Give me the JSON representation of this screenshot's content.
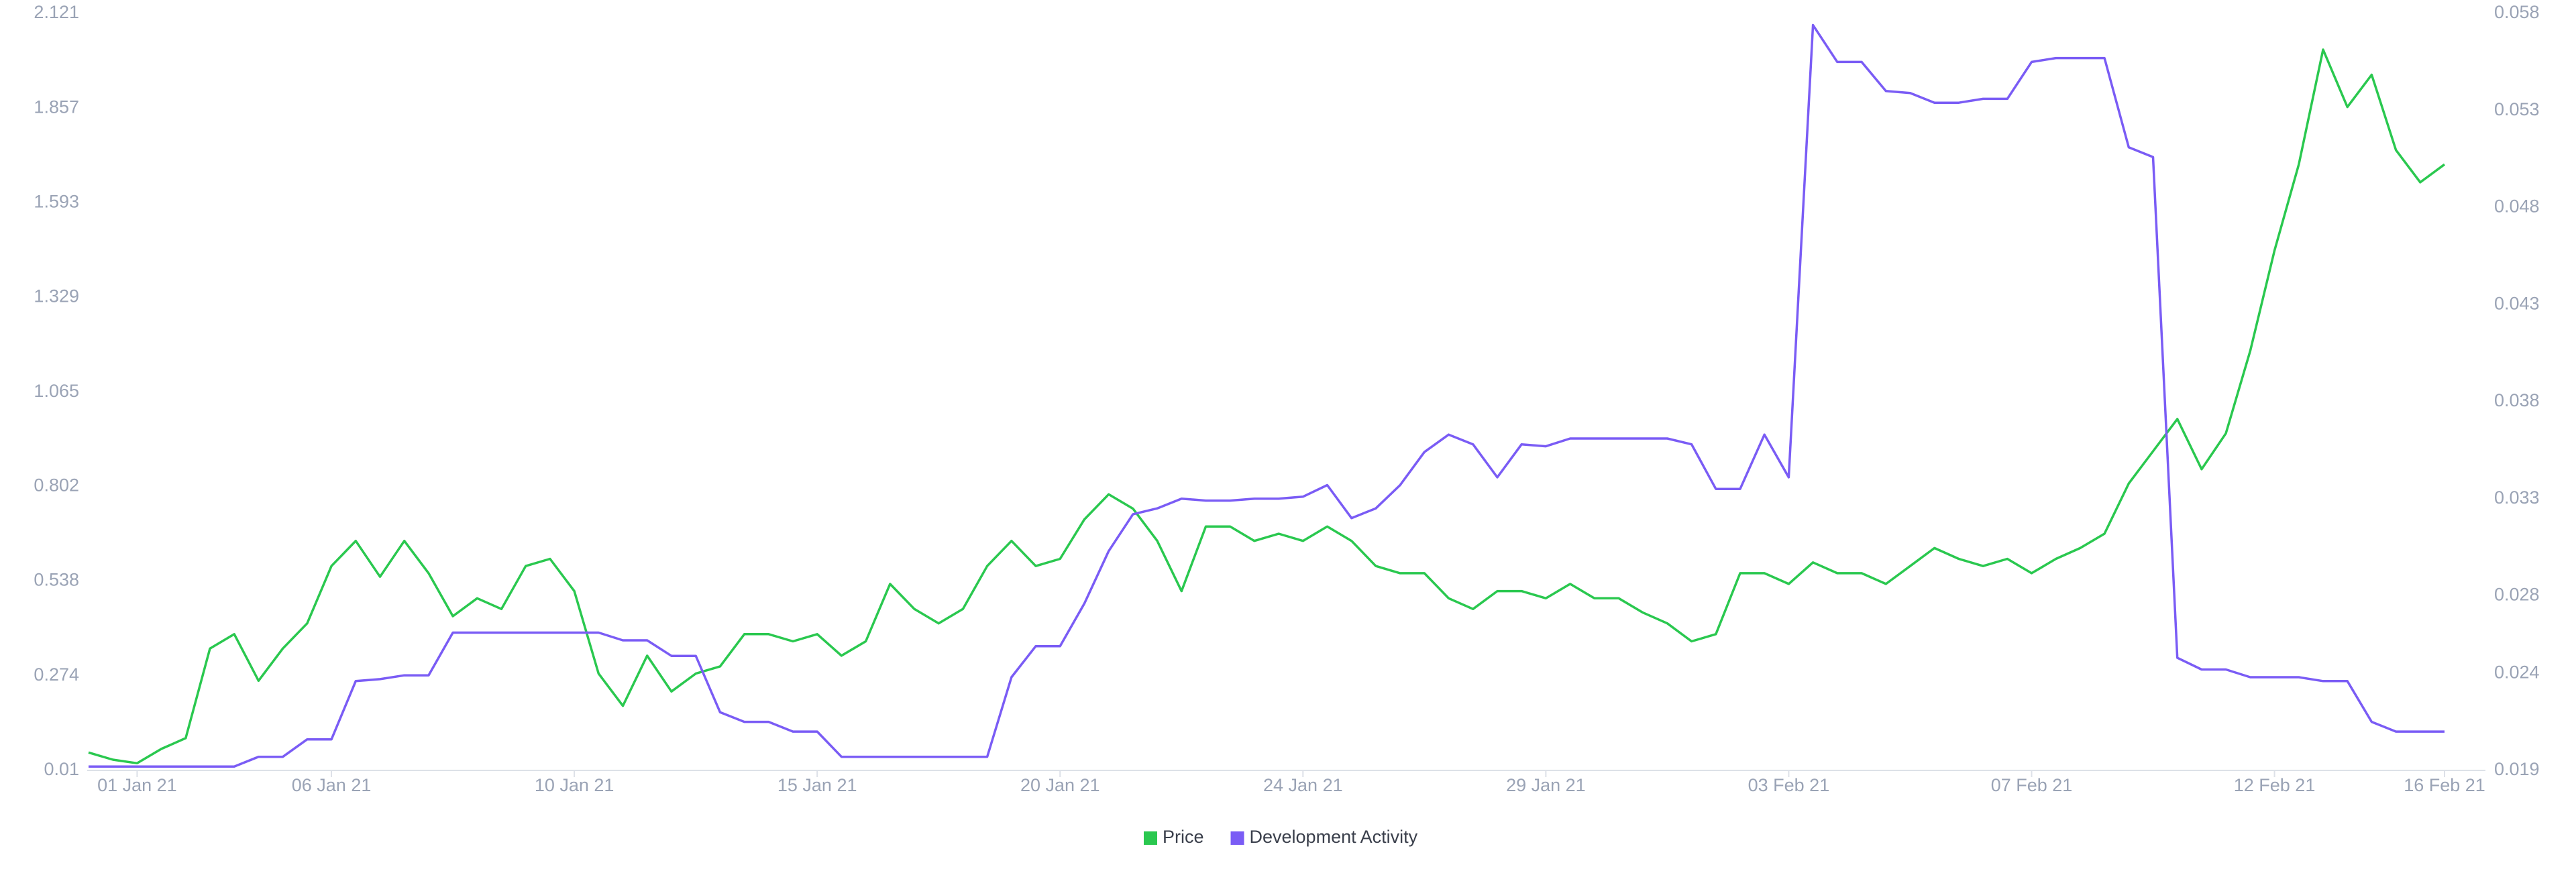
{
  "chart_data": {
    "type": "line",
    "categories": [
      null,
      null,
      "01 Jan 21",
      null,
      null,
      null,
      null,
      null,
      null,
      null,
      "06 Jan 21",
      null,
      null,
      null,
      null,
      null,
      null,
      null,
      null,
      null,
      "10 Jan 21",
      null,
      null,
      null,
      null,
      null,
      null,
      null,
      null,
      null,
      "15 Jan 21",
      null,
      null,
      null,
      null,
      null,
      null,
      null,
      null,
      null,
      "20 Jan 21",
      null,
      null,
      null,
      null,
      null,
      null,
      null,
      null,
      null,
      "24 Jan 21",
      null,
      null,
      null,
      null,
      null,
      null,
      null,
      null,
      null,
      "29 Jan 21",
      null,
      null,
      null,
      null,
      null,
      null,
      null,
      null,
      null,
      "03 Feb 21",
      null,
      null,
      null,
      null,
      null,
      null,
      null,
      null,
      null,
      "07 Feb 21",
      null,
      null,
      null,
      null,
      null,
      null,
      null,
      null,
      null,
      "12 Feb 21",
      null,
      null,
      null,
      null,
      null,
      null,
      "16 Feb 21"
    ],
    "series": [
      {
        "name": "Price",
        "color": "#2ac84f",
        "axis": "y",
        "values": [
          0.06,
          0.04,
          0.03,
          0.07,
          0.1,
          0.35,
          0.39,
          0.26,
          0.35,
          0.42,
          0.58,
          0.65,
          0.55,
          0.65,
          0.56,
          0.44,
          0.49,
          0.46,
          0.58,
          0.6,
          0.51,
          0.28,
          0.19,
          0.33,
          0.23,
          0.28,
          0.3,
          0.39,
          0.39,
          0.37,
          0.39,
          0.33,
          0.37,
          0.53,
          0.46,
          0.42,
          0.46,
          0.58,
          0.65,
          0.58,
          0.6,
          0.71,
          0.78,
          0.74,
          0.65,
          0.51,
          0.69,
          0.69,
          0.65,
          0.67,
          0.65,
          0.69,
          0.65,
          0.58,
          0.56,
          0.56,
          0.49,
          0.46,
          0.51,
          0.51,
          0.49,
          0.53,
          0.49,
          0.49,
          0.45,
          0.42,
          0.37,
          0.39,
          0.56,
          0.56,
          0.53,
          0.59,
          0.56,
          0.56,
          0.53,
          0.58,
          0.63,
          0.6,
          0.58,
          0.6,
          0.56,
          0.6,
          0.63,
          0.67,
          0.81,
          0.9,
          0.99,
          0.85,
          0.95,
          1.18,
          1.46,
          1.7,
          2.02,
          1.86,
          1.95,
          1.74,
          1.65,
          1.7
        ]
      },
      {
        "name": "Development Activity",
        "color": "#7a5cf5",
        "axis": "y2",
        "values": [
          0.0192,
          0.0192,
          0.0192,
          0.0192,
          0.0192,
          0.0192,
          0.0192,
          0.0197,
          0.0197,
          0.0206,
          0.0206,
          0.0236,
          0.0237,
          0.0239,
          0.0239,
          0.0261,
          0.0261,
          0.0261,
          0.0261,
          0.0261,
          0.0261,
          0.0261,
          0.0257,
          0.0257,
          0.0249,
          0.0249,
          0.022,
          0.0215,
          0.0215,
          0.021,
          0.021,
          0.0197,
          0.0197,
          0.0197,
          0.0197,
          0.0197,
          0.0197,
          0.0197,
          0.0238,
          0.0254,
          0.0254,
          0.0276,
          0.0303,
          0.0322,
          0.0325,
          0.033,
          0.0329,
          0.0329,
          0.033,
          0.033,
          0.0331,
          0.0337,
          0.032,
          0.0325,
          0.0337,
          0.0354,
          0.0363,
          0.0358,
          0.0341,
          0.0358,
          0.0357,
          0.0361,
          0.0361,
          0.0361,
          0.0361,
          0.0361,
          0.0358,
          0.0335,
          0.0335,
          0.0363,
          0.0341,
          0.0574,
          0.0555,
          0.0555,
          0.054,
          0.0539,
          0.0534,
          0.0534,
          0.0536,
          0.0536,
          0.0555,
          0.0557,
          0.0557,
          0.0557,
          0.0511,
          0.0506,
          0.0248,
          0.0242,
          0.0242,
          0.0238,
          0.0238,
          0.0238,
          0.0236,
          0.0236,
          0.0215,
          0.021,
          0.021,
          0.021
        ]
      }
    ],
    "ylim": [
      0.01,
      2.121
    ],
    "yticks": [
      0.01,
      0.274,
      0.538,
      0.802,
      1.065,
      1.329,
      1.593,
      1.857,
      2.121
    ],
    "y2lim": [
      0.019,
      0.058
    ],
    "y2ticks": [
      0.019,
      0.024,
      0.028,
      0.033,
      0.038,
      0.043,
      0.048,
      0.053,
      0.058
    ],
    "grid": false,
    "legend": "bottom"
  }
}
